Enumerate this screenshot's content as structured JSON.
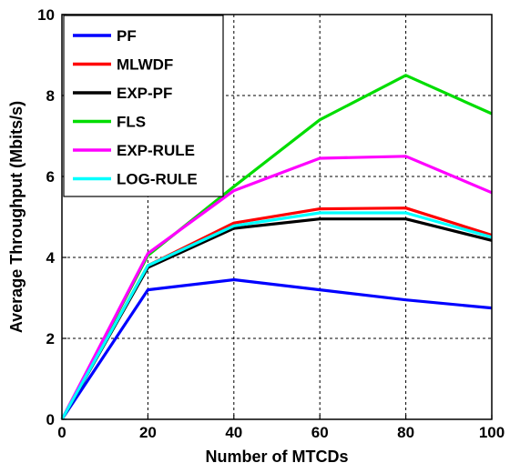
{
  "chart_data": {
    "type": "line",
    "title": "",
    "xlabel": "Number of MTCDs",
    "ylabel": "Average Throughput (Mbits/s)",
    "xlim": [
      0,
      100
    ],
    "ylim": [
      0,
      10
    ],
    "xticks": [
      "0",
      "20",
      "40",
      "60",
      "80",
      "100"
    ],
    "yticks": [
      "0",
      "2",
      "4",
      "6",
      "8",
      "10"
    ],
    "grid": true,
    "legend_position": "top-left",
    "x": [
      0,
      20,
      40,
      60,
      80,
      100
    ],
    "series": [
      {
        "name": "PF",
        "color": "#0000ff",
        "values": [
          0,
          3.2,
          3.45,
          3.2,
          2.95,
          2.75
        ]
      },
      {
        "name": "MLWDF",
        "color": "#ff0000",
        "values": [
          0,
          3.8,
          4.85,
          5.2,
          5.22,
          4.55
        ]
      },
      {
        "name": "EXP-PF",
        "color": "#000000",
        "values": [
          0,
          3.75,
          4.72,
          4.95,
          4.95,
          4.42
        ]
      },
      {
        "name": "FLS",
        "color": "#00dd00",
        "values": [
          0,
          4.05,
          5.75,
          7.4,
          8.5,
          7.55
        ]
      },
      {
        "name": "EXP-RULE",
        "color": "#ff00ff",
        "values": [
          0,
          4.1,
          5.65,
          6.45,
          6.5,
          5.6
        ]
      },
      {
        "name": "LOG-RULE",
        "color": "#00ffff",
        "values": [
          0,
          3.8,
          4.78,
          5.1,
          5.1,
          4.5
        ]
      }
    ]
  }
}
